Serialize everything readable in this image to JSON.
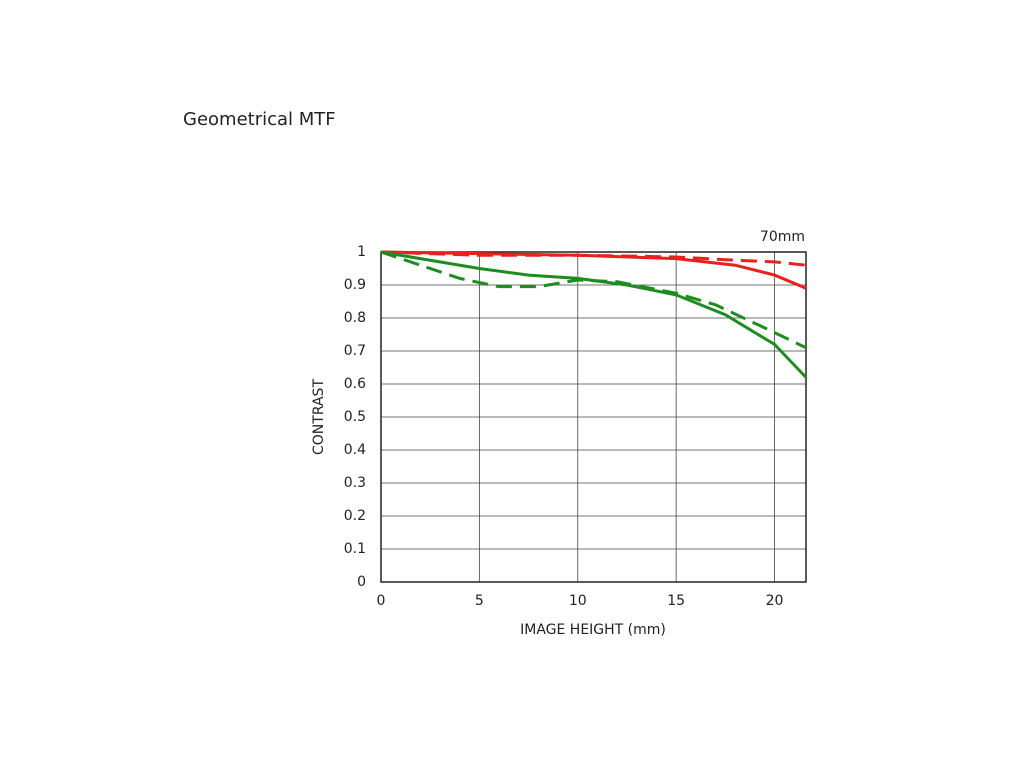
{
  "chart_data": {
    "type": "line",
    "title": "Geometrical MTF",
    "annotation": "70mm",
    "x_label": "IMAGE HEIGHT (mm)",
    "y_label": "CONTRAST",
    "xlim": [
      0,
      21.6
    ],
    "xticks": [
      0,
      5,
      10,
      15,
      20
    ],
    "ylim": [
      0,
      1
    ],
    "yticks": [
      0,
      0.1,
      0.2,
      0.3,
      0.4,
      0.5,
      0.6,
      0.7,
      0.8,
      0.9,
      1
    ],
    "grid": true,
    "series": [
      {
        "color": "#e8211c",
        "dashed": false,
        "x": [
          0,
          5,
          10,
          15,
          18,
          20,
          21.6
        ],
        "values": [
          1,
          0.995,
          0.99,
          0.98,
          0.96,
          0.93,
          0.89
        ]
      },
      {
        "color": "#e8211c",
        "dashed": true,
        "x": [
          0,
          5,
          10,
          15,
          18,
          20,
          21.6
        ],
        "values": [
          1,
          0.99,
          0.99,
          0.985,
          0.975,
          0.97,
          0.96
        ]
      },
      {
        "color": "#1e8c1e",
        "dashed": false,
        "x": [
          0,
          2,
          5,
          7.5,
          10,
          12.5,
          15,
          17.5,
          20,
          21.6
        ],
        "values": [
          1,
          0.98,
          0.95,
          0.93,
          0.92,
          0.9,
          0.87,
          0.81,
          0.72,
          0.62
        ]
      },
      {
        "color": "#1e8c1e",
        "dashed": true,
        "x": [
          0,
          2,
          4,
          6,
          8,
          10,
          12,
          15,
          17,
          19.5,
          21.6
        ],
        "values": [
          1,
          0.96,
          0.92,
          0.895,
          0.895,
          0.915,
          0.91,
          0.875,
          0.84,
          0.77,
          0.71
        ]
      }
    ]
  }
}
